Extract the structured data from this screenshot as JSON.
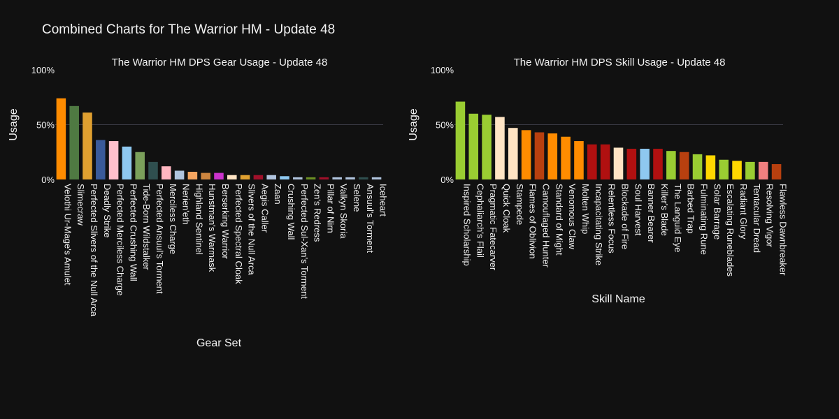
{
  "title": "Combined Charts for The Warrior HM - Update 48",
  "chart_data": [
    {
      "type": "bar",
      "title": "The Warrior HM DPS Gear Usage - Update 48",
      "xlabel": "Gear Set",
      "ylabel": "Usage",
      "ylim": [
        0,
        100
      ],
      "yticks": [
        "0%",
        "50%",
        "100%"
      ],
      "grid": true,
      "categories": [
        "Velothi Ur-Mage's Amulet",
        "Slimecraw",
        "Perfected Slivers of the Null Arca",
        "Deadly Strike",
        "Perfected Merciless Charge",
        "Perfected Crushing Wall",
        "Tide-Born Wildstalker",
        "Perfected Ansuul's Torment",
        "Merciless Charge",
        "Nerien'eth",
        "Highland Sentinel",
        "Hunstman's Warmask",
        "Berserking Warrior",
        "Perfected Spectral Cloak",
        "Slivers of the Null Arca",
        "Aegis Caller",
        "Zaan",
        "Crushing Wall",
        "Perfected Sul-Xan's Torment",
        "Zen's Redress",
        "Pillar of Nirn",
        "Valkyn Skoria",
        "Selene",
        "Ansuul's Torment",
        "Iceheart"
      ],
      "values": [
        74,
        67,
        61,
        36,
        35,
        30,
        25,
        16,
        12,
        8,
        7,
        6,
        6,
        4,
        4,
        4,
        4,
        3,
        2,
        2,
        2,
        2,
        2,
        2,
        2
      ],
      "colors": [
        "#ff8c00",
        "#4f7942",
        "#e0a030",
        "#3a5a9a",
        "#ffc0cb",
        "#8ec8f0",
        "#7ba05b",
        "#2f4f4f",
        "#ffb6c1",
        "#b0c4de",
        "#f4a460",
        "#cd853f",
        "#cc33cc",
        "#ffe4c4",
        "#e0a030",
        "#a0102a",
        "#b0c4de",
        "#8ec8f0",
        "#b0c4de",
        "#6b8e23",
        "#a0102a",
        "#b0c4de",
        "#b0c4de",
        "#2f4f4f",
        "#b0c4de"
      ]
    },
    {
      "type": "bar",
      "title": "The Warrior HM DPS Skill Usage - Update 48",
      "xlabel": "Skill Name",
      "ylabel": "Usage",
      "ylim": [
        0,
        100
      ],
      "yticks": [
        "0%",
        "50%",
        "100%"
      ],
      "grid": true,
      "categories": [
        "Inspired Scholarship",
        "Cephaliarch's Flail",
        "Pragmatic Fatecarver",
        "Quick Cloak",
        "Stampede",
        "Flames of Oblivion",
        "Camouflaged Hunter",
        "Standard of Might",
        "Venomous Claw",
        "Molten Whip",
        "Incapacitating Strike",
        "Relentless Focus",
        "Blockade of Fire",
        "Soul Harvest",
        "Banner Bearer",
        "Killer's Blade",
        "The Languid Eye",
        "Barbed Trap",
        "Fulminating Rune",
        "Solar Barrage",
        "Escalating Runeblades",
        "Radiant Glory",
        "Tentacular Dread",
        "Resolving Vigor",
        "Flawless Dawnbreaker"
      ],
      "values": [
        71,
        60,
        59,
        57,
        47,
        45,
        43,
        42,
        39,
        35,
        32,
        32,
        29,
        28,
        28,
        28,
        26,
        25,
        23,
        22,
        18,
        17,
        16,
        16,
        14
      ],
      "colors": [
        "#9acd32",
        "#9acd32",
        "#9acd32",
        "#ffe4c4",
        "#ffe4c4",
        "#ff8c00",
        "#b8400f",
        "#ff8c00",
        "#ff8c00",
        "#ff8c00",
        "#b01010",
        "#b01010",
        "#ffe4c4",
        "#b01010",
        "#8ec8f0",
        "#b01010",
        "#9acd32",
        "#b8400f",
        "#9acd32",
        "#ffd700",
        "#9acd32",
        "#ffd700",
        "#9acd32",
        "#f08080",
        "#b8400f"
      ]
    }
  ]
}
